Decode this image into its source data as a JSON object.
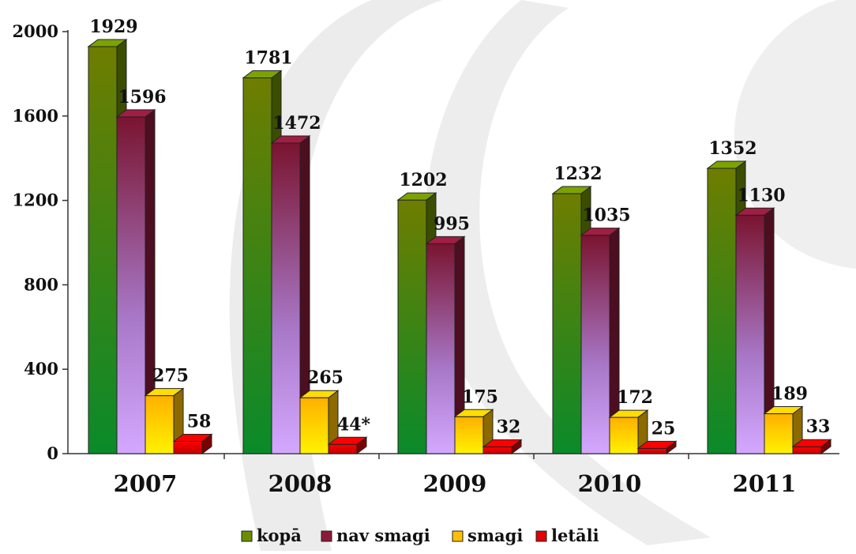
{
  "chart_data": {
    "type": "bar",
    "categories": [
      "2007",
      "2008",
      "2009",
      "2010",
      "2011"
    ],
    "series": [
      {
        "name": "kopā",
        "values": [
          1929,
          1781,
          1202,
          1232,
          1352
        ],
        "color": "#6b8e00"
      },
      {
        "name": "nav smagi",
        "values": [
          1596,
          1472,
          995,
          1035,
          1130
        ],
        "color": "#8b1a3a"
      },
      {
        "name": "smagi",
        "values": [
          275,
          265,
          175,
          172,
          189
        ],
        "color": "#ffc000"
      },
      {
        "name": "letāli",
        "values": [
          58,
          44,
          32,
          25,
          33
        ],
        "color": "#e00000"
      }
    ],
    "data_labels": [
      [
        "1929",
        "1781",
        "1202",
        "1232",
        "1352"
      ],
      [
        "1596",
        "1472",
        "995",
        "1035",
        "1130"
      ],
      [
        "275",
        "265",
        "175",
        "172",
        "189"
      ],
      [
        "58",
        "44*",
        "32",
        "25",
        "33"
      ]
    ],
    "yticks": [
      "0",
      "400",
      "800",
      "1200",
      "1600",
      "2000"
    ],
    "ylim": [
      0,
      2000
    ],
    "legend_position": "bottom",
    "style": "3d-column",
    "grid": false
  }
}
